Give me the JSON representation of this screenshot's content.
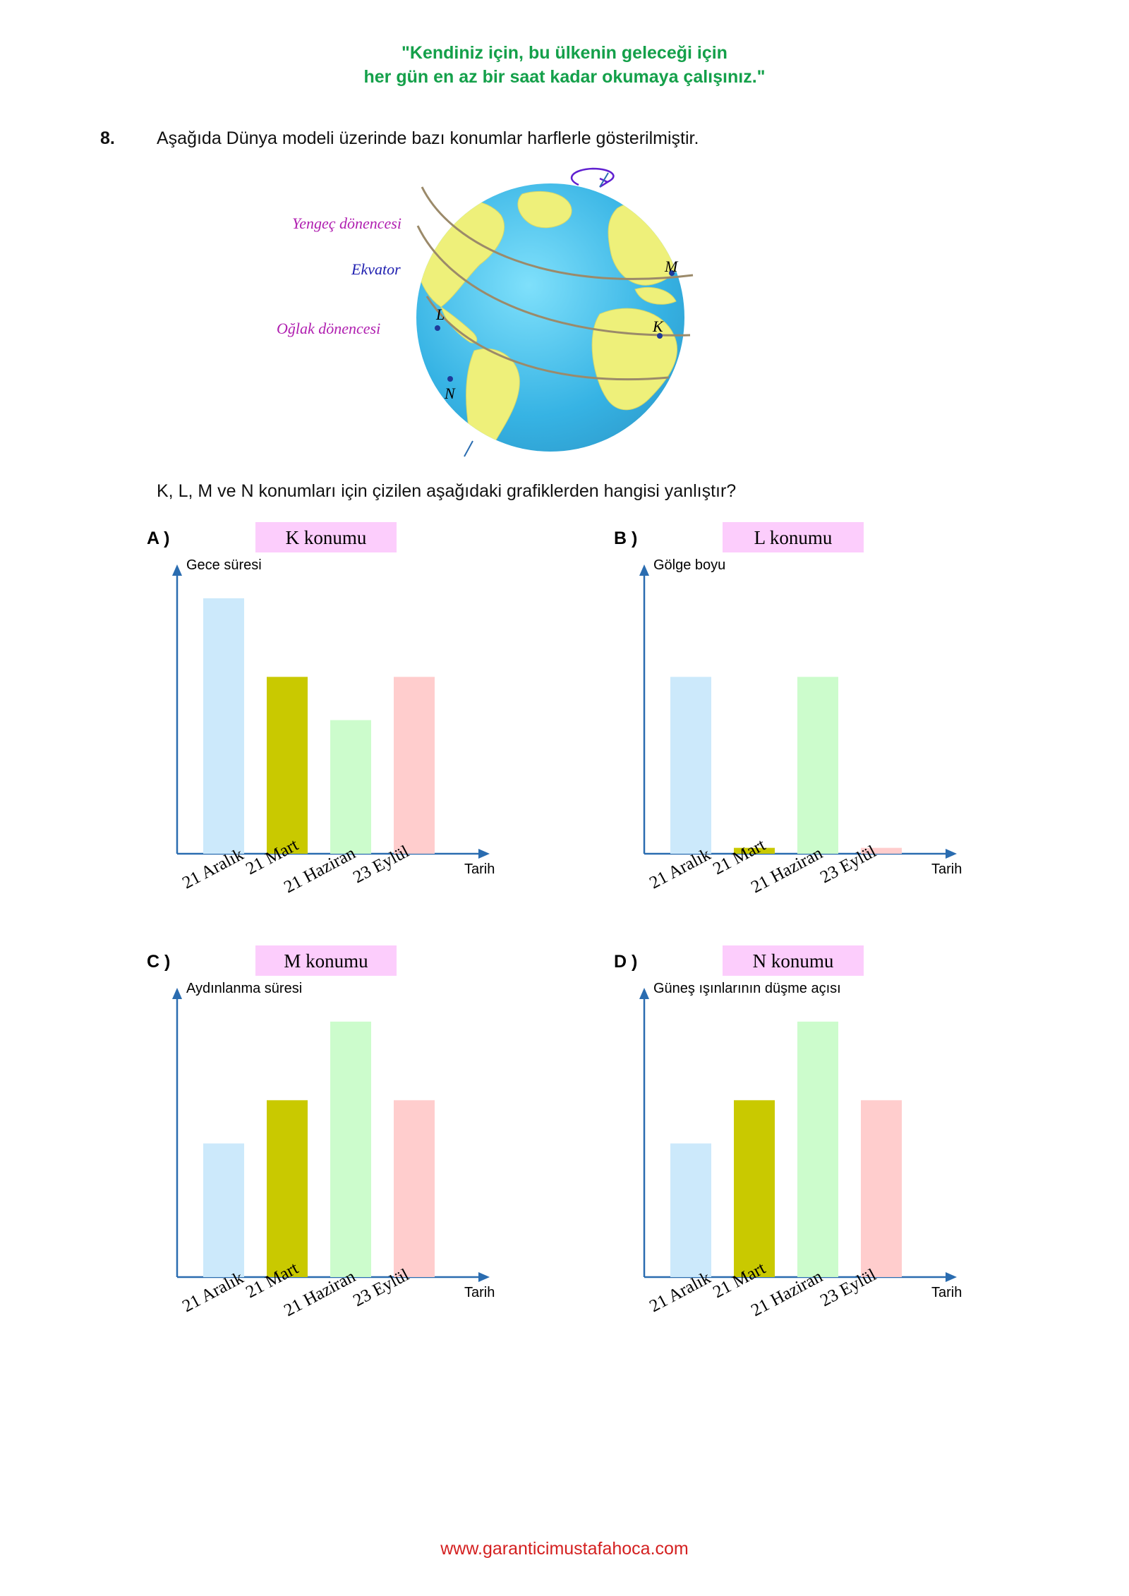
{
  "header": {
    "quote_line1": "\"Kendiniz için, bu ülkenin geleceği için",
    "quote_line2": "her gün en az bir saat kadar okumaya çalışınız.\"",
    "quote_color": "#14a04a"
  },
  "question": {
    "number": "8.",
    "text": "Aşağıda Dünya modeli üzerinde bazı konumlar harflerle gösterilmiştir.",
    "prompt": "K, L, M ve N konumları için çizilen aşağıdaki grafiklerden hangisi yanlıştır?"
  },
  "globe": {
    "labels": {
      "tropic_cancer": "Yengeç dönencesi",
      "equator": "Ekvator",
      "tropic_capricorn": "Oğlak dönencesi"
    },
    "points": {
      "k": "K",
      "l": "L",
      "m": "M",
      "n": "N"
    },
    "colors": {
      "ocean": "#3fb8e6",
      "land": "#eef07a",
      "tropic": "#b01fb0",
      "equator": "#2020b0"
    }
  },
  "bar_colors": [
    "#cce9fb",
    "#c9c900",
    "#ccfccc",
    "#ffcdcd"
  ],
  "title_bg": "#fccdfc",
  "chart_data": [
    {
      "type": "bar",
      "option": "A )",
      "title": "K konumu",
      "ylabel": "Gece süresi",
      "xlabel": "Tarih",
      "categories": [
        "21 Aralık",
        "21 Mart",
        "21 Haziran",
        "23 Eylül"
      ],
      "values": [
        13,
        9,
        6.8,
        9
      ],
      "ylim": [
        0,
        13.5
      ]
    },
    {
      "type": "bar",
      "option": "B )",
      "title": "L konumu",
      "ylabel": "Gölge boyu",
      "xlabel": "Tarih",
      "categories": [
        "21 Aralık",
        "21 Mart",
        "21 Haziran",
        "23 Eylül"
      ],
      "values": [
        9,
        0.3,
        9,
        0.3
      ],
      "ylim": [
        0,
        13.5
      ]
    },
    {
      "type": "bar",
      "option": "C )",
      "title": "M konumu",
      "ylabel": "Aydınlanma süresi",
      "xlabel": "Tarih",
      "categories": [
        "21 Aralık",
        "21 Mart",
        "21 Haziran",
        "23 Eylül"
      ],
      "values": [
        6.8,
        9,
        13,
        9
      ],
      "ylim": [
        0,
        13.5
      ]
    },
    {
      "type": "bar",
      "option": "D )",
      "title": "N konumu",
      "ylabel": "Güneş ışınlarının düşme açısı",
      "xlabel": "Tarih",
      "categories": [
        "21 Aralık",
        "21 Mart",
        "21 Haziran",
        "23 Eylül"
      ],
      "values": [
        6.8,
        9,
        13,
        9
      ],
      "ylim": [
        0,
        13.5
      ]
    }
  ],
  "footer": {
    "url": "www.garanticimustafahoca.com",
    "color": "#d42020"
  }
}
